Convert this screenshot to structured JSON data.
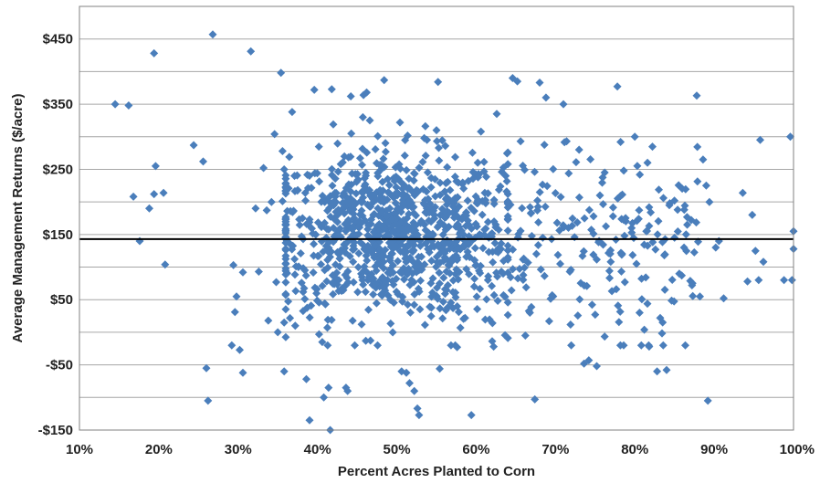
{
  "chart_data": {
    "type": "scatter",
    "xlabel": "Percent Acres Planted to Corn",
    "ylabel": "Average Management Returns ($/acre)",
    "xlim": [
      10,
      100
    ],
    "ylim": [
      -150,
      500
    ],
    "x_ticks": [
      {
        "value": 10,
        "label": "10%"
      },
      {
        "value": 20,
        "label": "20%"
      },
      {
        "value": 30,
        "label": "30%"
      },
      {
        "value": 40,
        "label": "40%"
      },
      {
        "value": 50,
        "label": "50%"
      },
      {
        "value": 60,
        "label": "60%"
      },
      {
        "value": 70,
        "label": "70%"
      },
      {
        "value": 80,
        "label": "80%"
      },
      {
        "value": 90,
        "label": "90%"
      },
      {
        "value": 100,
        "label": "100%"
      }
    ],
    "y_ticks": [
      {
        "value": 450,
        "label": "$450"
      },
      {
        "value": 350,
        "label": "$350"
      },
      {
        "value": 250,
        "label": "$250"
      },
      {
        "value": 150,
        "label": "$150"
      },
      {
        "value": 50,
        "label": "$50"
      },
      {
        "value": -50,
        "label": "-$50"
      },
      {
        "value": -150,
        "label": "-$150"
      }
    ],
    "grid_y": [
      500,
      450,
      400,
      350,
      300,
      250,
      200,
      150,
      100,
      50,
      0,
      -50,
      -100,
      -150
    ],
    "grid": true,
    "marker_color": "#4a7ebb",
    "reference_line": {
      "y": 143,
      "color": "#000000"
    },
    "points": [
      [
        14.5,
        350
      ],
      [
        16.2,
        348
      ],
      [
        16.8,
        208
      ],
      [
        17.6,
        140
      ],
      [
        18.8,
        190
      ],
      [
        19.4,
        428
      ],
      [
        19.6,
        255
      ],
      [
        19.4,
        212
      ],
      [
        20.6,
        214
      ],
      [
        20.8,
        104
      ],
      [
        24.4,
        287
      ],
      [
        25.6,
        262
      ],
      [
        26.0,
        -55
      ],
      [
        26.2,
        -105
      ],
      [
        26.8,
        457
      ],
      [
        29.2,
        -20
      ],
      [
        29.4,
        103
      ],
      [
        29.8,
        55
      ],
      [
        29.6,
        31
      ],
      [
        30.2,
        -27
      ],
      [
        30.6,
        -62
      ],
      [
        30.6,
        92
      ],
      [
        31.6,
        431
      ],
      [
        32.2,
        190
      ],
      [
        32.6,
        93
      ],
      [
        33.2,
        252
      ],
      [
        33.6,
        187
      ],
      [
        33.8,
        18
      ],
      [
        34.2,
        200
      ],
      [
        34.6,
        304
      ],
      [
        34.8,
        77
      ],
      [
        35.0,
        0
      ],
      [
        35.4,
        398
      ],
      [
        35.6,
        278
      ],
      [
        35.6,
        201
      ],
      [
        35.8,
        250
      ],
      [
        35.8,
        15
      ],
      [
        35.8,
        -60
      ],
      [
        36.2,
        186
      ],
      [
        36.6,
        135
      ],
      [
        36.8,
        338
      ],
      [
        37.2,
        10
      ],
      [
        37.6,
        100
      ],
      [
        38.0,
        147
      ],
      [
        38.2,
        62
      ],
      [
        38.6,
        -72
      ],
      [
        39.0,
        173
      ],
      [
        39.0,
        -135
      ],
      [
        39.2,
        41
      ],
      [
        39.6,
        372
      ],
      [
        40.2,
        -3
      ],
      [
        40.6,
        -15
      ],
      [
        40.8,
        -100
      ],
      [
        41.0,
        43
      ],
      [
        41.4,
        -85
      ],
      [
        41.6,
        -150
      ],
      [
        41.8,
        373
      ],
      [
        42.0,
        319
      ],
      [
        43.6,
        -85
      ],
      [
        43.8,
        -90
      ],
      [
        44.2,
        362
      ],
      [
        45.8,
        364
      ],
      [
        46.2,
        368
      ],
      [
        46.6,
        325
      ],
      [
        47.6,
        301
      ],
      [
        48.4,
        387
      ],
      [
        48.6,
        277
      ],
      [
        50.4,
        322
      ],
      [
        50.6,
        -60
      ],
      [
        51.2,
        -62
      ],
      [
        51.6,
        -78
      ],
      [
        52.2,
        -90
      ],
      [
        52.6,
        -117
      ],
      [
        52.8,
        -127
      ],
      [
        53.6,
        316
      ],
      [
        55.0,
        310
      ],
      [
        55.2,
        384
      ],
      [
        55.4,
        -56
      ],
      [
        56.2,
        34
      ],
      [
        57.6,
        -23
      ],
      [
        58.6,
        22
      ],
      [
        59.4,
        -127
      ],
      [
        60.2,
        260
      ],
      [
        60.6,
        308
      ],
      [
        61.2,
        198
      ],
      [
        61.6,
        145
      ],
      [
        62.2,
        -22
      ],
      [
        62.6,
        335
      ],
      [
        63.4,
        90
      ],
      [
        64.0,
        197
      ],
      [
        64.6,
        390
      ],
      [
        65.2,
        385
      ],
      [
        65.6,
        293
      ],
      [
        66.0,
        113
      ],
      [
        66.2,
        -5
      ],
      [
        66.8,
        192
      ],
      [
        67.4,
        -103
      ],
      [
        68.0,
        383
      ],
      [
        68.4,
        145
      ],
      [
        68.8,
        360
      ],
      [
        69.2,
        17
      ],
      [
        70.2,
        168
      ],
      [
        70.6,
        105
      ],
      [
        71.0,
        350
      ],
      [
        71.4,
        293
      ],
      [
        71.8,
        93
      ],
      [
        72.4,
        146
      ],
      [
        72.6,
        261
      ],
      [
        73.0,
        207
      ],
      [
        73.4,
        117
      ],
      [
        73.6,
        -48
      ],
      [
        74.2,
        -43
      ],
      [
        74.8,
        178
      ],
      [
        75.0,
        27
      ],
      [
        75.2,
        -52
      ],
      [
        75.6,
        210
      ],
      [
        76.2,
        245
      ],
      [
        76.8,
        94
      ],
      [
        77.8,
        377
      ],
      [
        78.2,
        292
      ],
      [
        78.6,
        248
      ],
      [
        79.6,
        160
      ],
      [
        80.0,
        300
      ],
      [
        80.2,
        105
      ],
      [
        80.6,
        30
      ],
      [
        81.2,
        4
      ],
      [
        81.6,
        260
      ],
      [
        81.8,
        -22
      ],
      [
        82.0,
        184
      ],
      [
        82.6,
        127
      ],
      [
        82.8,
        -60
      ],
      [
        83.2,
        22
      ],
      [
        83.6,
        206
      ],
      [
        84.0,
        -58
      ],
      [
        84.4,
        198
      ],
      [
        85.0,
        145
      ],
      [
        85.6,
        90
      ],
      [
        86.2,
        130
      ],
      [
        86.6,
        165
      ],
      [
        87.2,
        72
      ],
      [
        87.8,
        363
      ],
      [
        88.2,
        55
      ],
      [
        88.6,
        265
      ],
      [
        89.0,
        225
      ],
      [
        89.2,
        -105
      ],
      [
        89.4,
        200
      ],
      [
        90.2,
        130
      ],
      [
        90.6,
        140
      ],
      [
        91.2,
        52
      ],
      [
        93.6,
        214
      ],
      [
        94.2,
        78
      ],
      [
        94.8,
        180
      ],
      [
        95.2,
        125
      ],
      [
        95.6,
        80
      ],
      [
        95.8,
        295
      ],
      [
        96.2,
        108
      ],
      [
        98.8,
        80
      ],
      [
        99.6,
        300
      ],
      [
        99.8,
        80
      ],
      [
        100.0,
        155
      ],
      [
        100.0,
        128
      ]
    ],
    "cluster": {
      "count": 900,
      "x_mean": 49,
      "x_sd": 7.5,
      "y_mean": 150,
      "y_sd": 62
    },
    "band": {
      "count": 230,
      "x_range": [
        56,
        88
      ],
      "y_mean": 130,
      "y_sd": 72
    }
  }
}
